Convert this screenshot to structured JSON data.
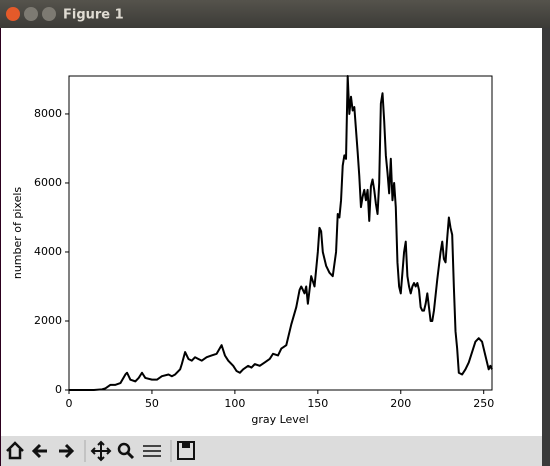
{
  "window": {
    "title": "Figure 1"
  },
  "chart_data": {
    "type": "line",
    "xlabel": "gray Level",
    "ylabel": "number of pixels",
    "x": [
      0,
      5,
      10,
      15,
      20,
      22,
      25,
      28,
      31,
      34,
      35,
      37,
      40,
      42,
      44,
      46,
      50,
      53,
      56,
      60,
      62,
      64,
      67,
      68,
      70,
      72,
      74,
      76,
      78,
      80,
      83,
      86,
      89,
      92,
      94,
      96,
      99,
      101,
      103,
      105,
      108,
      110,
      112,
      115,
      118,
      121,
      123,
      126,
      128,
      131,
      134,
      137,
      139,
      140,
      142,
      143,
      144,
      146,
      148,
      150,
      151,
      152,
      153,
      155,
      157,
      159,
      161,
      162,
      163,
      164,
      165,
      166,
      167,
      168,
      169,
      170,
      171,
      172,
      174,
      175,
      176,
      177,
      178,
      179,
      180,
      181,
      182,
      183,
      184,
      185,
      186,
      187,
      188,
      189,
      190,
      191,
      192,
      193,
      194,
      195,
      196,
      197,
      198,
      199,
      200,
      201,
      202,
      203,
      204,
      205,
      206,
      207,
      208,
      209,
      210,
      211,
      212,
      213,
      214,
      215,
      216,
      217,
      218,
      219,
      220,
      222,
      224,
      225,
      226,
      227,
      228,
      229,
      230,
      231,
      232,
      233,
      234,
      235,
      237,
      239,
      241,
      243,
      245,
      247,
      249,
      251,
      253,
      254,
      255
    ],
    "values": [
      0,
      0,
      0,
      0,
      20,
      50,
      150,
      150,
      200,
      450,
      500,
      300,
      250,
      350,
      500,
      350,
      300,
      300,
      400,
      450,
      400,
      450,
      600,
      750,
      1100,
      900,
      850,
      950,
      900,
      850,
      950,
      1000,
      1050,
      1300,
      1000,
      850,
      700,
      550,
      500,
      600,
      700,
      650,
      750,
      700,
      800,
      900,
      1050,
      1000,
      1200,
      1300,
      1900,
      2400,
      2900,
      3000,
      2800,
      3000,
      2500,
      3300,
      3000,
      4000,
      4700,
      4600,
      4000,
      3600,
      3400,
      3300,
      4000,
      5100,
      5000,
      5500,
      6500,
      6800,
      6700,
      9100,
      8000,
      8500,
      8100,
      8200,
      6900,
      6200,
      5300,
      5600,
      5800,
      5500,
      5800,
      4900,
      5900,
      6100,
      5800,
      5400,
      5100,
      6000,
      8300,
      8600,
      7800,
      6800,
      6300,
      5700,
      6700,
      5500,
      6000,
      5300,
      3700,
      3000,
      2800,
      3400,
      4000,
      4300,
      3300,
      3000,
      2800,
      3000,
      3100,
      3000,
      3100,
      2900,
      2400,
      2300,
      2300,
      2500,
      2800,
      2400,
      2000,
      2000,
      2300,
      3200,
      4000,
      4300,
      3800,
      3700,
      4400,
      5000,
      4700,
      4500,
      3000,
      1700,
      1200,
      500,
      450,
      600,
      800,
      1100,
      1400,
      1500,
      1400,
      1000,
      600,
      700,
      600
    ],
    "color": "#000000",
    "xlim": [
      0,
      255
    ],
    "ylim": [
      0,
      9100
    ],
    "xticks": [
      0,
      50,
      100,
      150,
      200,
      250
    ],
    "yticks": [
      0,
      2000,
      4000,
      6000,
      8000
    ],
    "grid": false
  }
}
